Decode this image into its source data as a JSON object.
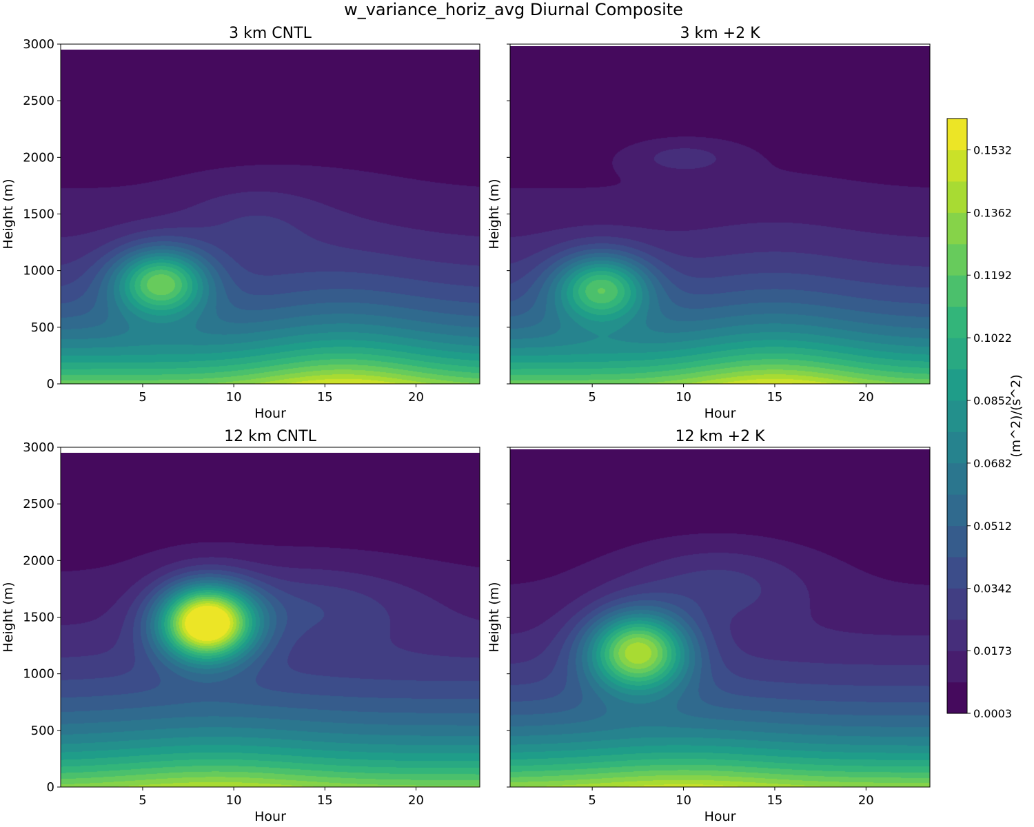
{
  "figure": {
    "title": "w_variance_horiz_avg Diurnal Composite"
  },
  "colorbar": {
    "label": "(m^2)/(s^2)",
    "vmin": 0.0003,
    "vmax": 0.1617,
    "tick_values": [
      0.0003,
      0.0173,
      0.0342,
      0.0512,
      0.0682,
      0.0852,
      0.1022,
      0.1192,
      0.1362,
      0.1532
    ],
    "tick_labels": [
      "0.0003",
      "0.0173",
      "0.0342",
      "0.0512",
      "0.0682",
      "0.0852",
      "0.1022",
      "0.1192",
      "0.1362",
      "0.1532"
    ],
    "levels": 19,
    "colormap": [
      "#440154",
      "#482878",
      "#3e4989",
      "#31688e",
      "#26828e",
      "#1f9e89",
      "#35b779",
      "#6ece58",
      "#b5de2b",
      "#fde725"
    ],
    "top_color": "#f7e91a"
  },
  "chart_data": [
    {
      "type": "contourf",
      "id": "a",
      "title": "3 km CNTL",
      "xlabel": "Hour",
      "ylabel": "Height (m)",
      "xlim": [
        0.5,
        23.5
      ],
      "ylim": [
        0,
        3000
      ],
      "xticks": [
        5,
        10,
        15,
        20
      ],
      "xtick_labels": [
        "5",
        "10",
        "15",
        "20"
      ],
      "yticks": [
        0,
        500,
        1000,
        1500,
        2000,
        2500,
        3000
      ],
      "ytick_labels": [
        "0",
        "500",
        "1000",
        "1500",
        "2000",
        "2500",
        "3000"
      ],
      "data_top_m": 2950,
      "surface": {
        "base_value": 0.125,
        "base_amplitude": 0.03,
        "peak_hour": 16,
        "peak_width_h": 5,
        "depth_m": 650
      },
      "blobs": [
        {
          "hour": 6,
          "height_m": 900,
          "peak_value": 0.095,
          "width_h": 2.6,
          "depth_m": 300
        },
        {
          "hour": 11,
          "height_m": 1450,
          "peak_value": 0.012,
          "width_h": 4,
          "depth_m": 350
        }
      ]
    },
    {
      "type": "contourf",
      "id": "b",
      "title": "3 km +2 K",
      "xlabel": "Hour",
      "ylabel": "Height (m)",
      "xlim": [
        0.5,
        23.5
      ],
      "ylim": [
        0,
        3000
      ],
      "xticks": [
        5,
        10,
        15,
        20
      ],
      "xtick_labels": [
        "5",
        "10",
        "15",
        "20"
      ],
      "yticks": [
        0,
        500,
        1000,
        1500,
        2000,
        2500,
        3000
      ],
      "ytick_labels": [
        "0",
        "500",
        "1000",
        "1500",
        "2000",
        "2500",
        "3000"
      ],
      "data_top_m": 2980,
      "surface": {
        "base_value": 0.125,
        "base_amplitude": 0.03,
        "peak_hour": 15,
        "peak_width_h": 5,
        "depth_m": 650
      },
      "blobs": [
        {
          "hour": 5.5,
          "height_m": 850,
          "peak_value": 0.085,
          "width_h": 2.6,
          "depth_m": 300
        },
        {
          "hour": 10,
          "height_m": 2000,
          "peak_value": 0.015,
          "width_h": 3,
          "depth_m": 160
        }
      ]
    },
    {
      "type": "contourf",
      "id": "c",
      "title": "12 km CNTL",
      "xlabel": "Hour",
      "ylabel": "Height (m)",
      "xlim": [
        0.5,
        23.5
      ],
      "ylim": [
        0,
        3000
      ],
      "xticks": [
        5,
        10,
        15,
        20
      ],
      "xtick_labels": [
        "5",
        "10",
        "15",
        "20"
      ],
      "yticks": [
        0,
        500,
        1000,
        1500,
        2000,
        2500,
        3000
      ],
      "ytick_labels": [
        "0",
        "500",
        "1000",
        "1500",
        "2000",
        "2500",
        "3000"
      ],
      "data_top_m": 2950,
      "surface": {
        "base_value": 0.13,
        "base_amplitude": 0.015,
        "peak_hour": 9,
        "peak_width_h": 6,
        "depth_m": 700
      },
      "blobs": [
        {
          "hour": 8.5,
          "height_m": 1450,
          "peak_value": 0.16,
          "width_h": 2.6,
          "depth_m": 330
        },
        {
          "hour": 14,
          "height_m": 1600,
          "peak_value": 0.02,
          "width_h": 6,
          "depth_m": 350
        }
      ]
    },
    {
      "type": "contourf",
      "id": "d",
      "title": "12 km +2 K",
      "xlabel": "Hour",
      "ylabel": "Height (m)",
      "xlim": [
        0.5,
        23.5
      ],
      "ylim": [
        0,
        3000
      ],
      "xticks": [
        5,
        10,
        15,
        20
      ],
      "xtick_labels": [
        "5",
        "10",
        "15",
        "20"
      ],
      "yticks": [
        0,
        500,
        1000,
        1500,
        2000,
        2500,
        3000
      ],
      "ytick_labels": [
        "0",
        "500",
        "1000",
        "1500",
        "2000",
        "2500",
        "3000"
      ],
      "data_top_m": 2980,
      "surface": {
        "base_value": 0.135,
        "base_amplitude": 0.015,
        "peak_hour": 10,
        "peak_width_h": 6,
        "depth_m": 650
      },
      "blobs": [
        {
          "hour": 7.5,
          "height_m": 1200,
          "peak_value": 0.12,
          "width_h": 2.8,
          "depth_m": 350
        },
        {
          "hour": 12,
          "height_m": 1800,
          "peak_value": 0.02,
          "width_h": 5,
          "depth_m": 350
        }
      ]
    }
  ]
}
